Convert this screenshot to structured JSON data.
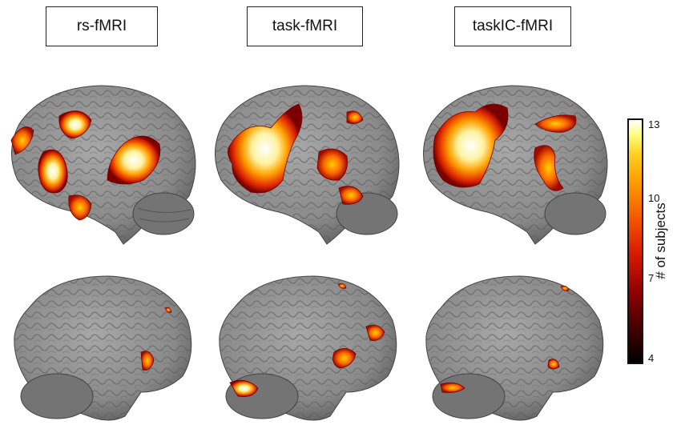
{
  "panels": [
    {
      "title": "rs-fMRI"
    },
    {
      "title": "task-fMRI"
    },
    {
      "title": "taskIC-fMRI"
    }
  ],
  "colorbar": {
    "label": "# of subjects",
    "ticks": [
      "13",
      "10",
      "7",
      "4"
    ],
    "min": 4,
    "max": 13,
    "colormap": [
      "#000000",
      "#8a0000",
      "#d81a00",
      "#ff9a00",
      "#ffd020",
      "#ffffff"
    ]
  },
  "colors": {
    "cortex": "#8f8f8f",
    "cortex_dark": "#5a5a5a",
    "cerebellum": "#7a7a7a",
    "activation_low": "#c82000",
    "activation_mid": "#ff8a00",
    "activation_high": "#fffbe0"
  }
}
